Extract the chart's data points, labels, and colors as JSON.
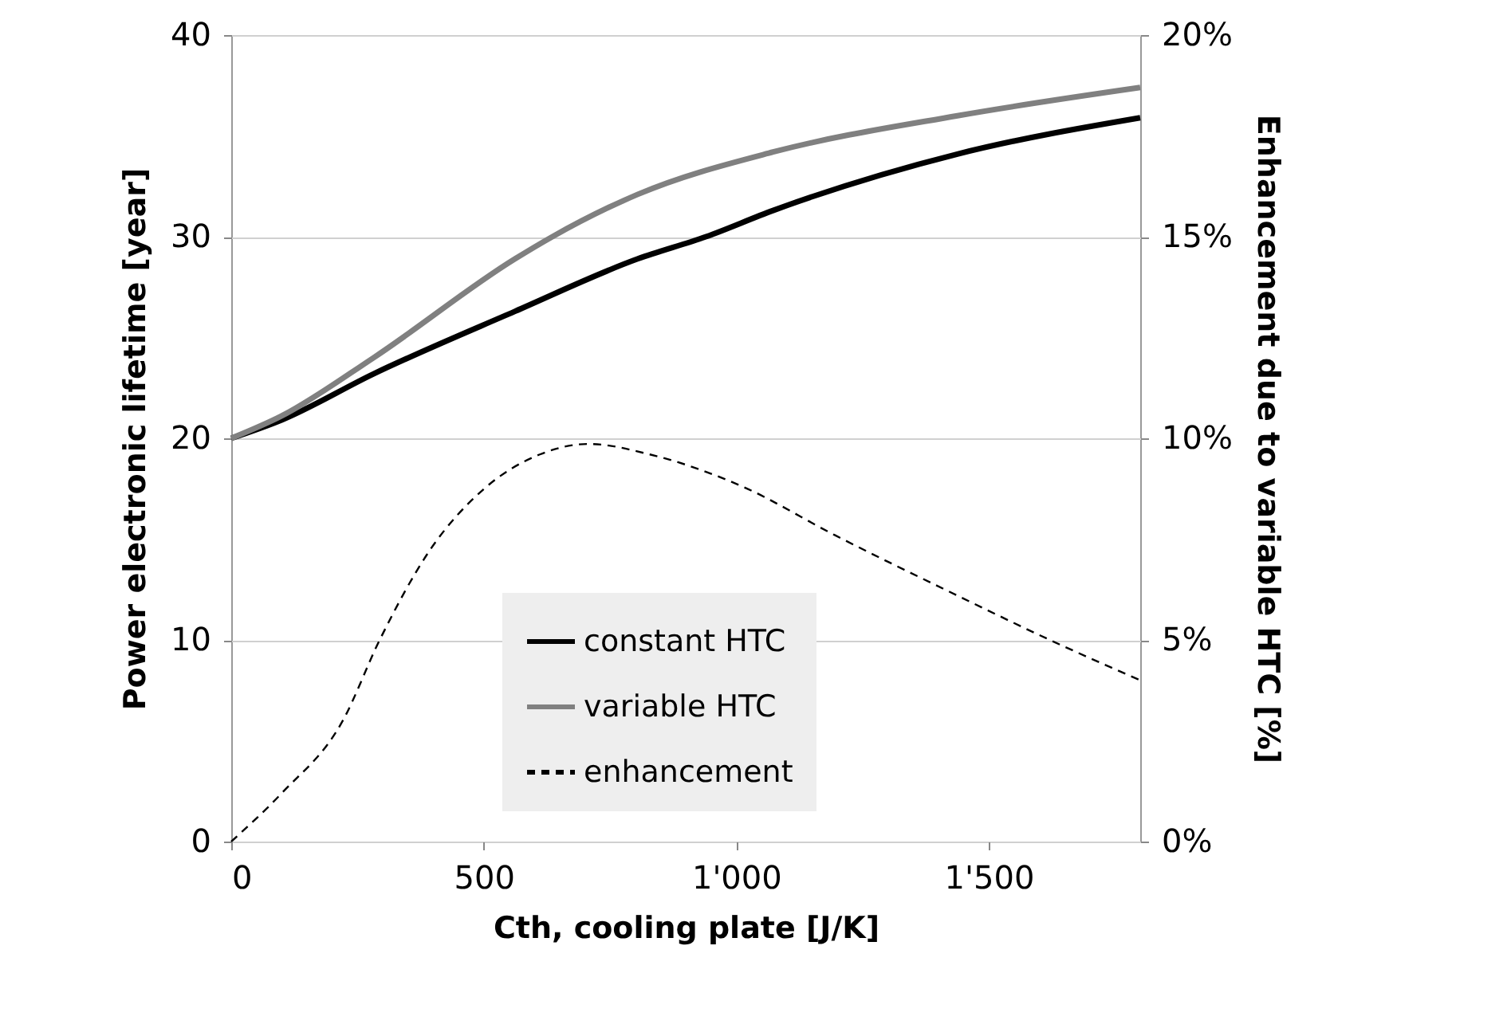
{
  "chart_data": {
    "type": "line",
    "xlabel": "Cth, cooling plate [J/K]",
    "ylabel": "Power electronic lifetime [year]",
    "y2label": "Enhancement due to variable HTC [%]",
    "xlim": [
      0,
      1800
    ],
    "xticks": [
      0,
      500,
      {
        "value": 1000,
        "label": "1'000"
      },
      {
        "value": 1500,
        "label": "1'500"
      }
    ],
    "ylim": [
      0,
      40
    ],
    "yticks": [
      0,
      10,
      20,
      30,
      40
    ],
    "y2lim": [
      0,
      20
    ],
    "y2ticks": [
      {
        "value": 0,
        "label": "0%"
      },
      {
        "value": 5,
        "label": "5%"
      },
      {
        "value": 10,
        "label": "10%"
      },
      {
        "value": 15,
        "label": "15%"
      },
      {
        "value": 20,
        "label": "20%"
      }
    ],
    "grid": "y",
    "legend": "bottom",
    "series": [
      {
        "name": "constant HTC",
        "color": "#000000",
        "line_style": "solid",
        "x": [
          0,
          99,
          282,
          562,
          805,
          940,
          1073,
          1438,
          1800
        ],
        "values": [
          20,
          20.9,
          23.2,
          26.3,
          28.9,
          30,
          31.3,
          34.1,
          35.9
        ]
      },
      {
        "name": "variable HTC",
        "color": "#808080",
        "line_style": "solid",
        "x": [
          0,
          99,
          282,
          562,
          636,
          805,
          1073,
          1438,
          1800
        ],
        "values": [
          20,
          21.1,
          24.0,
          28.9,
          30,
          32.1,
          34.2,
          36.0,
          37.4
        ]
      },
      {
        "name": "enhancement",
        "color": "#000000",
        "line_style": "dashed",
        "axis": "y2",
        "x": [
          0,
          100,
          221,
          294,
          392,
          501,
          611,
          708,
          829,
          1013,
          1195,
          1438,
          1621,
          1800
        ],
        "values": [
          0,
          1.2,
          3.0,
          5.0,
          7.2,
          8.75,
          9.6,
          9.86,
          9.6,
          8.8,
          7.6,
          6.1,
          5.0,
          4.0
        ]
      }
    ]
  }
}
